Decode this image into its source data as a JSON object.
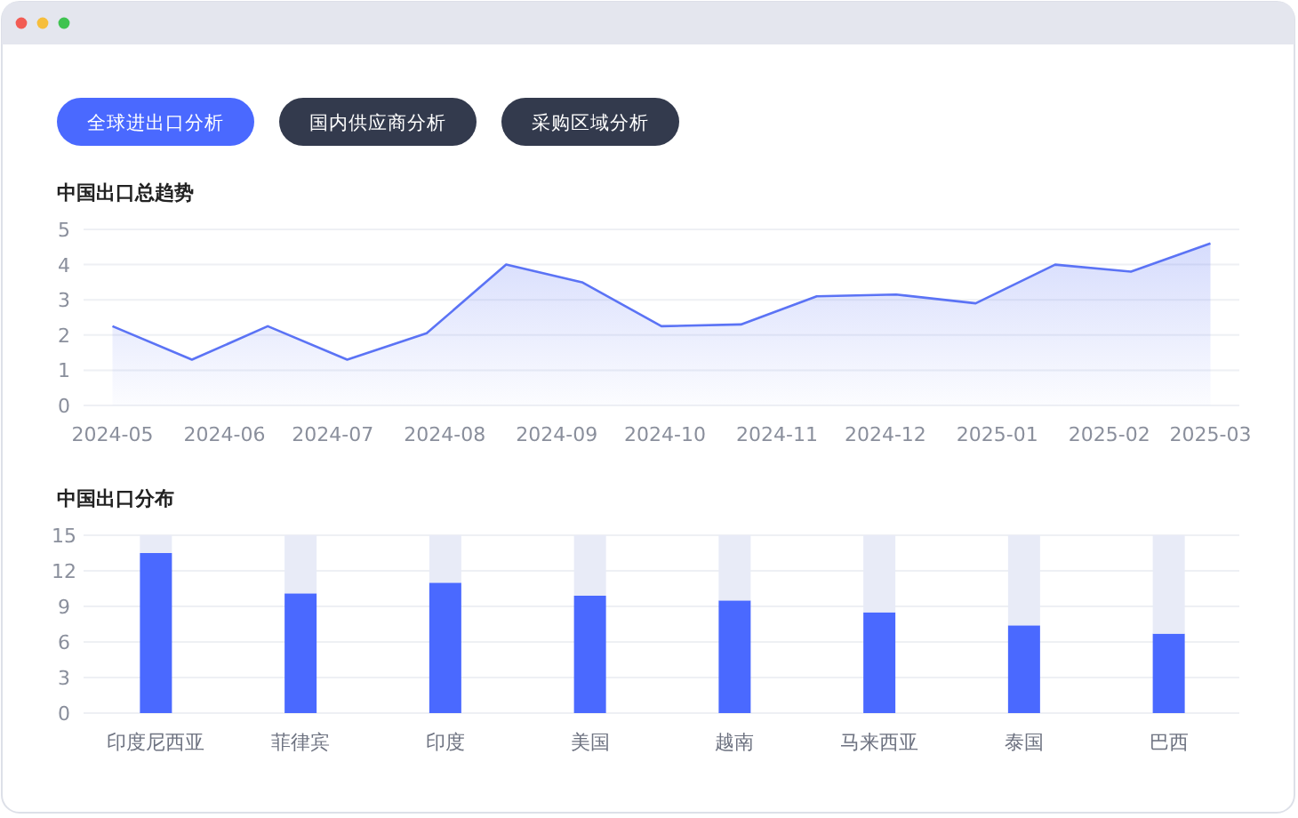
{
  "chart_data": [
    {
      "type": "other",
      "annotations": [
        "全球进出口分析",
        "国内供应商分析",
        "采购区域分析"
      ]
    },
    {
      "type": "area",
      "title": "中国出口总趋势",
      "x": [
        "2024-05-01",
        "2024-05-23",
        "2024-06-13",
        "2024-07-05",
        "2024-07-27",
        "2024-08-18",
        "2024-09-08",
        "2024-09-30",
        "2024-10-22",
        "2024-11-12",
        "2024-12-04",
        "2024-12-26",
        "2025-01-17",
        "2025-02-07",
        "2025-03-01"
      ],
      "color": "#5b73f5",
      "values": [
        2.25,
        1.3,
        2.25,
        1.3,
        2.05,
        4.0,
        3.5,
        2.25,
        2.3,
        3.1,
        3.15,
        2.9,
        4.0,
        3.8,
        4.6
      ],
      "xlim": [
        "2024-04-23",
        "2025-03-09"
      ],
      "xticks": [
        "2024-05",
        "2024-06",
        "2024-07",
        "2024-08",
        "2024-09",
        "2024-10",
        "2024-11",
        "2024-12",
        "2025-01",
        "2025-02",
        "2025-03"
      ],
      "ylim": [
        0,
        5
      ],
      "yticks": [
        0,
        1,
        2,
        3,
        4,
        5
      ],
      "grid": "y"
    },
    {
      "type": "bar",
      "title": "中国出口分布",
      "categories": [
        "印度尼西亚",
        "菲律宾",
        "印度",
        "美国",
        "越南",
        "马来西亚",
        "泰国",
        "巴西"
      ],
      "stacked": true,
      "series": [
        {
          "color": "#4a69ff",
          "values": [
            13.5,
            10.1,
            11,
            9.9,
            9.5,
            8.5,
            7.4,
            6.7
          ]
        },
        {
          "color": "#e8ebf7",
          "values": [
            1.5,
            4.9,
            4,
            5.1,
            5.5,
            6.5,
            7.6,
            8.3
          ]
        }
      ],
      "ylim": [
        0,
        15
      ],
      "yticks": [
        0,
        3,
        6,
        9,
        12,
        15
      ],
      "grid": "y"
    }
  ]
}
